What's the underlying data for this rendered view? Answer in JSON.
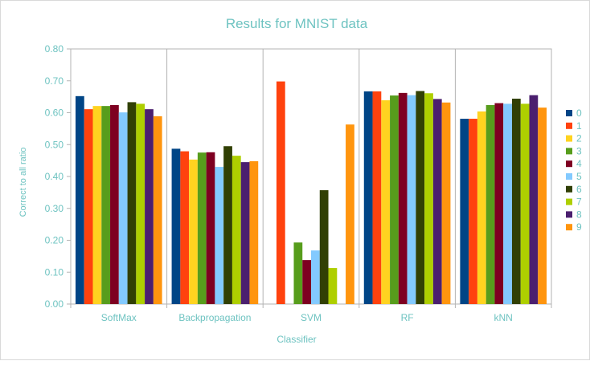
{
  "chart_data": {
    "type": "bar",
    "title": "Results for MNIST data",
    "xlabel": "Classifier",
    "ylabel": "Correct to all ratio",
    "ylim": [
      0,
      0.8
    ],
    "yticks": [
      "0.00",
      "0.10",
      "0.20",
      "0.30",
      "0.40",
      "0.50",
      "0.60",
      "0.70",
      "0.80"
    ],
    "grid": "vertical category separators",
    "legend_position": "right",
    "categories": [
      "SoftMax",
      "Backpropagation",
      "SVM",
      "RF",
      "kNN"
    ],
    "series": [
      {
        "name": "0",
        "color": "#004586",
        "values": [
          0.652,
          0.487,
          0.0,
          0.667,
          0.581
        ]
      },
      {
        "name": "1",
        "color": "#ff420e",
        "values": [
          0.611,
          0.479,
          0.698,
          0.667,
          0.581
        ]
      },
      {
        "name": "2",
        "color": "#ffd320",
        "values": [
          0.621,
          0.453,
          0.0,
          0.639,
          0.604
        ]
      },
      {
        "name": "3",
        "color": "#579d1c",
        "values": [
          0.621,
          0.475,
          0.193,
          0.654,
          0.624
        ]
      },
      {
        "name": "4",
        "color": "#7e0021",
        "values": [
          0.624,
          0.476,
          0.138,
          0.662,
          0.63
        ]
      },
      {
        "name": "5",
        "color": "#83caff",
        "values": [
          0.601,
          0.43,
          0.168,
          0.655,
          0.628
        ]
      },
      {
        "name": "6",
        "color": "#314004",
        "values": [
          0.633,
          0.495,
          0.357,
          0.668,
          0.644
        ]
      },
      {
        "name": "7",
        "color": "#aecf00",
        "values": [
          0.628,
          0.465,
          0.113,
          0.661,
          0.628
        ]
      },
      {
        "name": "8",
        "color": "#4b1f6f",
        "values": [
          0.611,
          0.445,
          0.0,
          0.643,
          0.655
        ]
      },
      {
        "name": "9",
        "color": "#ff950e",
        "values": [
          0.589,
          0.448,
          0.563,
          0.632,
          0.616
        ]
      }
    ]
  }
}
